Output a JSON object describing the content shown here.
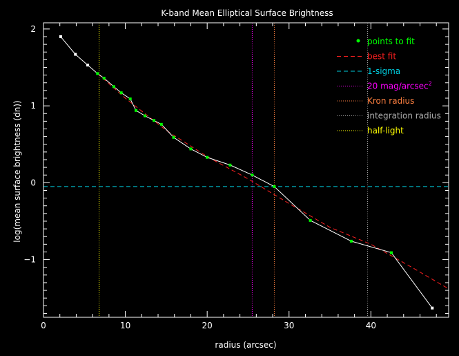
{
  "chart_data": {
    "type": "line",
    "title": "K-band Mean Elliptical Surface Brightness",
    "xlabel": "radius (arcsec)",
    "ylabel": "log(mean surface brightness (dn))",
    "xlim": [
      0,
      49.5
    ],
    "ylim": [
      -1.75,
      2.08
    ],
    "xticks": [
      0,
      10,
      20,
      30,
      40
    ],
    "xtick_labels": [
      "0",
      "10",
      "20",
      "30",
      "40"
    ],
    "yticks": [
      -1,
      0,
      1,
      2
    ],
    "ytick_labels": [
      "−1",
      "0",
      "1",
      "2"
    ],
    "grid": false,
    "legend_position": "top-right",
    "profile": {
      "x": [
        2.1,
        3.9,
        5.4,
        6.6,
        7.4,
        8.6,
        9.5,
        10.6,
        11.3,
        12.4,
        13.5,
        14.4,
        15.9,
        18.0,
        20.0,
        22.8,
        25.5,
        28.2,
        32.6,
        37.6,
        42.5,
        47.5
      ],
      "y": [
        1.9,
        1.67,
        1.53,
        1.42,
        1.36,
        1.25,
        1.17,
        1.09,
        0.94,
        0.87,
        0.81,
        0.76,
        0.59,
        0.44,
        0.33,
        0.23,
        0.1,
        -0.05,
        -0.49,
        -0.76,
        -0.91,
        -1.63
      ],
      "fit_mask": [
        false,
        false,
        false,
        true,
        true,
        true,
        true,
        true,
        true,
        true,
        true,
        true,
        true,
        true,
        true,
        true,
        true,
        true,
        true,
        true,
        true,
        false
      ]
    },
    "best_fit": {
      "x": [
        6.6,
        10,
        15,
        20,
        25,
        30,
        35,
        40,
        45,
        49.5
      ],
      "y": [
        1.42,
        1.1,
        0.68,
        0.34,
        0.05,
        -0.27,
        -0.58,
        -0.8,
        -1.1,
        -1.38
      ]
    },
    "one_sigma": -0.05,
    "vlines": {
      "mag20": 25.5,
      "kron": 28.2,
      "integration": 39.6,
      "half_light": 6.8
    },
    "legend": [
      {
        "label": "points to fit",
        "color": "#00ff00",
        "style": "dot"
      },
      {
        "label": "best fit",
        "color": "#ff2020",
        "style": "dashed"
      },
      {
        "label": "1-sigma",
        "color": "#00ccdd",
        "style": "dashed"
      },
      {
        "label": "20 mag/arcsec",
        "sup": "2",
        "color": "#ff00ff",
        "style": "dotted"
      },
      {
        "label": "Kron radius",
        "color": "#ff8040",
        "style": "dotted"
      },
      {
        "label": "integration radius",
        "color": "#aaaaaa",
        "style": "dotted"
      },
      {
        "label": "half-light",
        "color": "#ffff00",
        "style": "dotted"
      }
    ],
    "colors": {
      "background": "#000000",
      "axes": "#ffffff",
      "profile_line": "#ffffff",
      "fit_points": "#00ff00",
      "other_points": "#ffffff",
      "best_fit": "#ff2020",
      "one_sigma": "#00ccdd",
      "mag20": "#ff00ff",
      "kron": "#ff8040",
      "integration": "#aaaaaa",
      "half_light": "#ffff00"
    }
  }
}
